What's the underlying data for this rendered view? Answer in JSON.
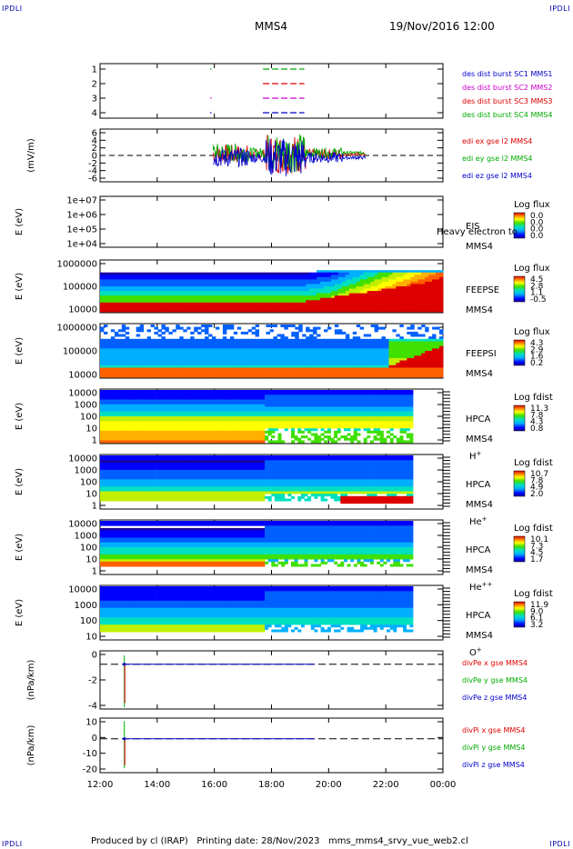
{
  "header": {
    "corner_label": "IPDLI",
    "spacecraft": "MMS4",
    "datetime": "19/Nov/2016 12:00"
  },
  "footer": {
    "text": "Produced by cl (IRAP)   Printing date: 28/Nov/2023   mms_mms4_srvy_vue_web2.cl"
  },
  "chart_data": {
    "type": "multi-panel time series",
    "x_ticks": [
      "12:00",
      "14:00",
      "16:00",
      "18:00",
      "20:00",
      "22:00",
      "00:00"
    ],
    "xlim_hours": [
      12,
      24
    ],
    "panels": [
      {
        "id": "burst",
        "type": "line",
        "ylabel": "",
        "yticks": [
          "1",
          "2",
          "3",
          "4"
        ],
        "ylim": [
          0.5,
          4.5
        ],
        "legend": [
          {
            "label": "des dist burst SC1 MMS1",
            "color": "#0000cc"
          },
          {
            "label": "des dist burst SC2 MMS2",
            "color": "#cc00cc"
          },
          {
            "label": "des dist burst SC3 MMS3",
            "color": "#dd0000"
          },
          {
            "label": "des dist burst SC4 MMS4",
            "color": "#00aa00"
          }
        ],
        "intervals_hours": [
          {
            "sc": 4,
            "from": 15.85,
            "to": 15.9
          },
          {
            "sc": 4,
            "from": 17.7,
            "to": 19.15
          },
          {
            "sc": 3,
            "from": 17.7,
            "to": 19.15
          },
          {
            "sc": 2,
            "from": 15.85,
            "to": 15.9
          },
          {
            "sc": 2,
            "from": 17.7,
            "to": 19.15
          },
          {
            "sc": 1,
            "from": 15.85,
            "to": 15.9
          },
          {
            "sc": 1,
            "from": 17.7,
            "to": 19.15
          }
        ]
      },
      {
        "id": "edi",
        "type": "line",
        "ylabel": "(mV/m)",
        "yticks": [
          "6",
          "4",
          "2",
          "0",
          "-2",
          "-4",
          "-6"
        ],
        "ylim": [
          -6,
          6
        ],
        "legend": [
          {
            "label": "edi ex gse l2 MMS4",
            "color": "#dd0000"
          },
          {
            "label": "edi ey gse l2 MMS4",
            "color": "#00aa00"
          },
          {
            "label": "edi ez gse l2 MMS4",
            "color": "#0000cc"
          }
        ],
        "active_hours": [
          15.95,
          21.3
        ]
      },
      {
        "id": "eis",
        "type": "heatmap",
        "ylabel": "E (eV)",
        "yticks": [
          "1e+07",
          "1e+06",
          "1e+05",
          "1e+04"
        ],
        "instrument": "EIS",
        "species": "Heavy electron to",
        "spacecraft": "MMS4",
        "colorbar_title": "Log flux",
        "colorbar_ticks": [
          "0.0",
          "0.0",
          "0.0",
          "0.0"
        ]
      },
      {
        "id": "feepse",
        "type": "heatmap",
        "ylabel": "E (eV)",
        "yticks": [
          "1000000",
          "100000",
          "10000"
        ],
        "instrument": "FEEPSE",
        "spacecraft": "MMS4",
        "colorbar_title": "Log flux",
        "colorbar_ticks": [
          "4.5",
          "2.8",
          "1.1",
          "-0.5"
        ]
      },
      {
        "id": "feepsi",
        "type": "heatmap",
        "ylabel": "E (eV)",
        "yticks": [
          "1000000",
          "100000",
          "10000"
        ],
        "instrument": "FEEPSI",
        "spacecraft": "MMS4",
        "colorbar_title": "Log flux",
        "colorbar_ticks": [
          "4.3",
          "2.9",
          "1.6",
          "0.2"
        ]
      },
      {
        "id": "hpca_h",
        "type": "heatmap",
        "ylabel": "E (eV)",
        "yticks": [
          "10000",
          "1000",
          "100",
          "10",
          "1"
        ],
        "instrument": "HPCA",
        "spacecraft": "MMS4",
        "species_base": "H",
        "species_sup": "+",
        "colorbar_title": "Log fdist",
        "colorbar_ticks": [
          "11.3",
          "7.8",
          "4.3",
          "0.8"
        ]
      },
      {
        "id": "hpca_he",
        "type": "heatmap",
        "ylabel": "E (eV)",
        "yticks": [
          "10000",
          "1000",
          "100",
          "10",
          "1"
        ],
        "instrument": "HPCA",
        "spacecraft": "MMS4",
        "species_base": "He",
        "species_sup": "+",
        "colorbar_title": "Log fdist",
        "colorbar_ticks": [
          "10.7",
          "7.8",
          "4.9",
          "2.0"
        ]
      },
      {
        "id": "hpca_hepp",
        "type": "heatmap",
        "ylabel": "E (eV)",
        "yticks": [
          "10000",
          "1000",
          "100",
          "10",
          "1"
        ],
        "instrument": "HPCA",
        "spacecraft": "MMS4",
        "species_base": "He",
        "species_sup": "++",
        "colorbar_title": "Log fdist",
        "colorbar_ticks": [
          "10.1",
          "7.3",
          "4.5",
          "1.7"
        ]
      },
      {
        "id": "hpca_o",
        "type": "heatmap",
        "ylabel": "E (eV)",
        "yticks": [
          "10000",
          "1000",
          "100",
          "10"
        ],
        "instrument": "HPCA",
        "spacecraft": "MMS4",
        "species_base": "O",
        "species_sup": "+",
        "colorbar_title": "Log fdist",
        "colorbar_ticks": [
          "11.9",
          "9.0",
          "6.1",
          "3.2"
        ]
      },
      {
        "id": "divpe",
        "type": "line",
        "ylabel": "(nPa/km)",
        "yticks": [
          "0",
          "-2",
          "-4"
        ],
        "ylim": [
          -5,
          1.5
        ],
        "legend": [
          {
            "label": "divPe x gse MMS4",
            "color": "#dd0000"
          },
          {
            "label": "divPe y gse MMS4",
            "color": "#00aa00"
          },
          {
            "label": "divPe z gse MMS4",
            "color": "#0000cc"
          }
        ],
        "spike_hour": 12.85,
        "spike_min": -4.8,
        "spike_max": 1.0
      },
      {
        "id": "divpi",
        "type": "line",
        "ylabel": "(nPa/km)",
        "yticks": [
          "10",
          "0",
          "-10",
          "-20"
        ],
        "ylim": [
          -23,
          14
        ],
        "legend": [
          {
            "label": "divPi x gse MMS4",
            "color": "#dd0000"
          },
          {
            "label": "divPi y gse MMS4",
            "color": "#00aa00"
          },
          {
            "label": "divPi z gse MMS4",
            "color": "#0000cc"
          }
        ],
        "spike_hour": 12.85,
        "spike_min": -20,
        "spike_max": 12
      }
    ]
  }
}
